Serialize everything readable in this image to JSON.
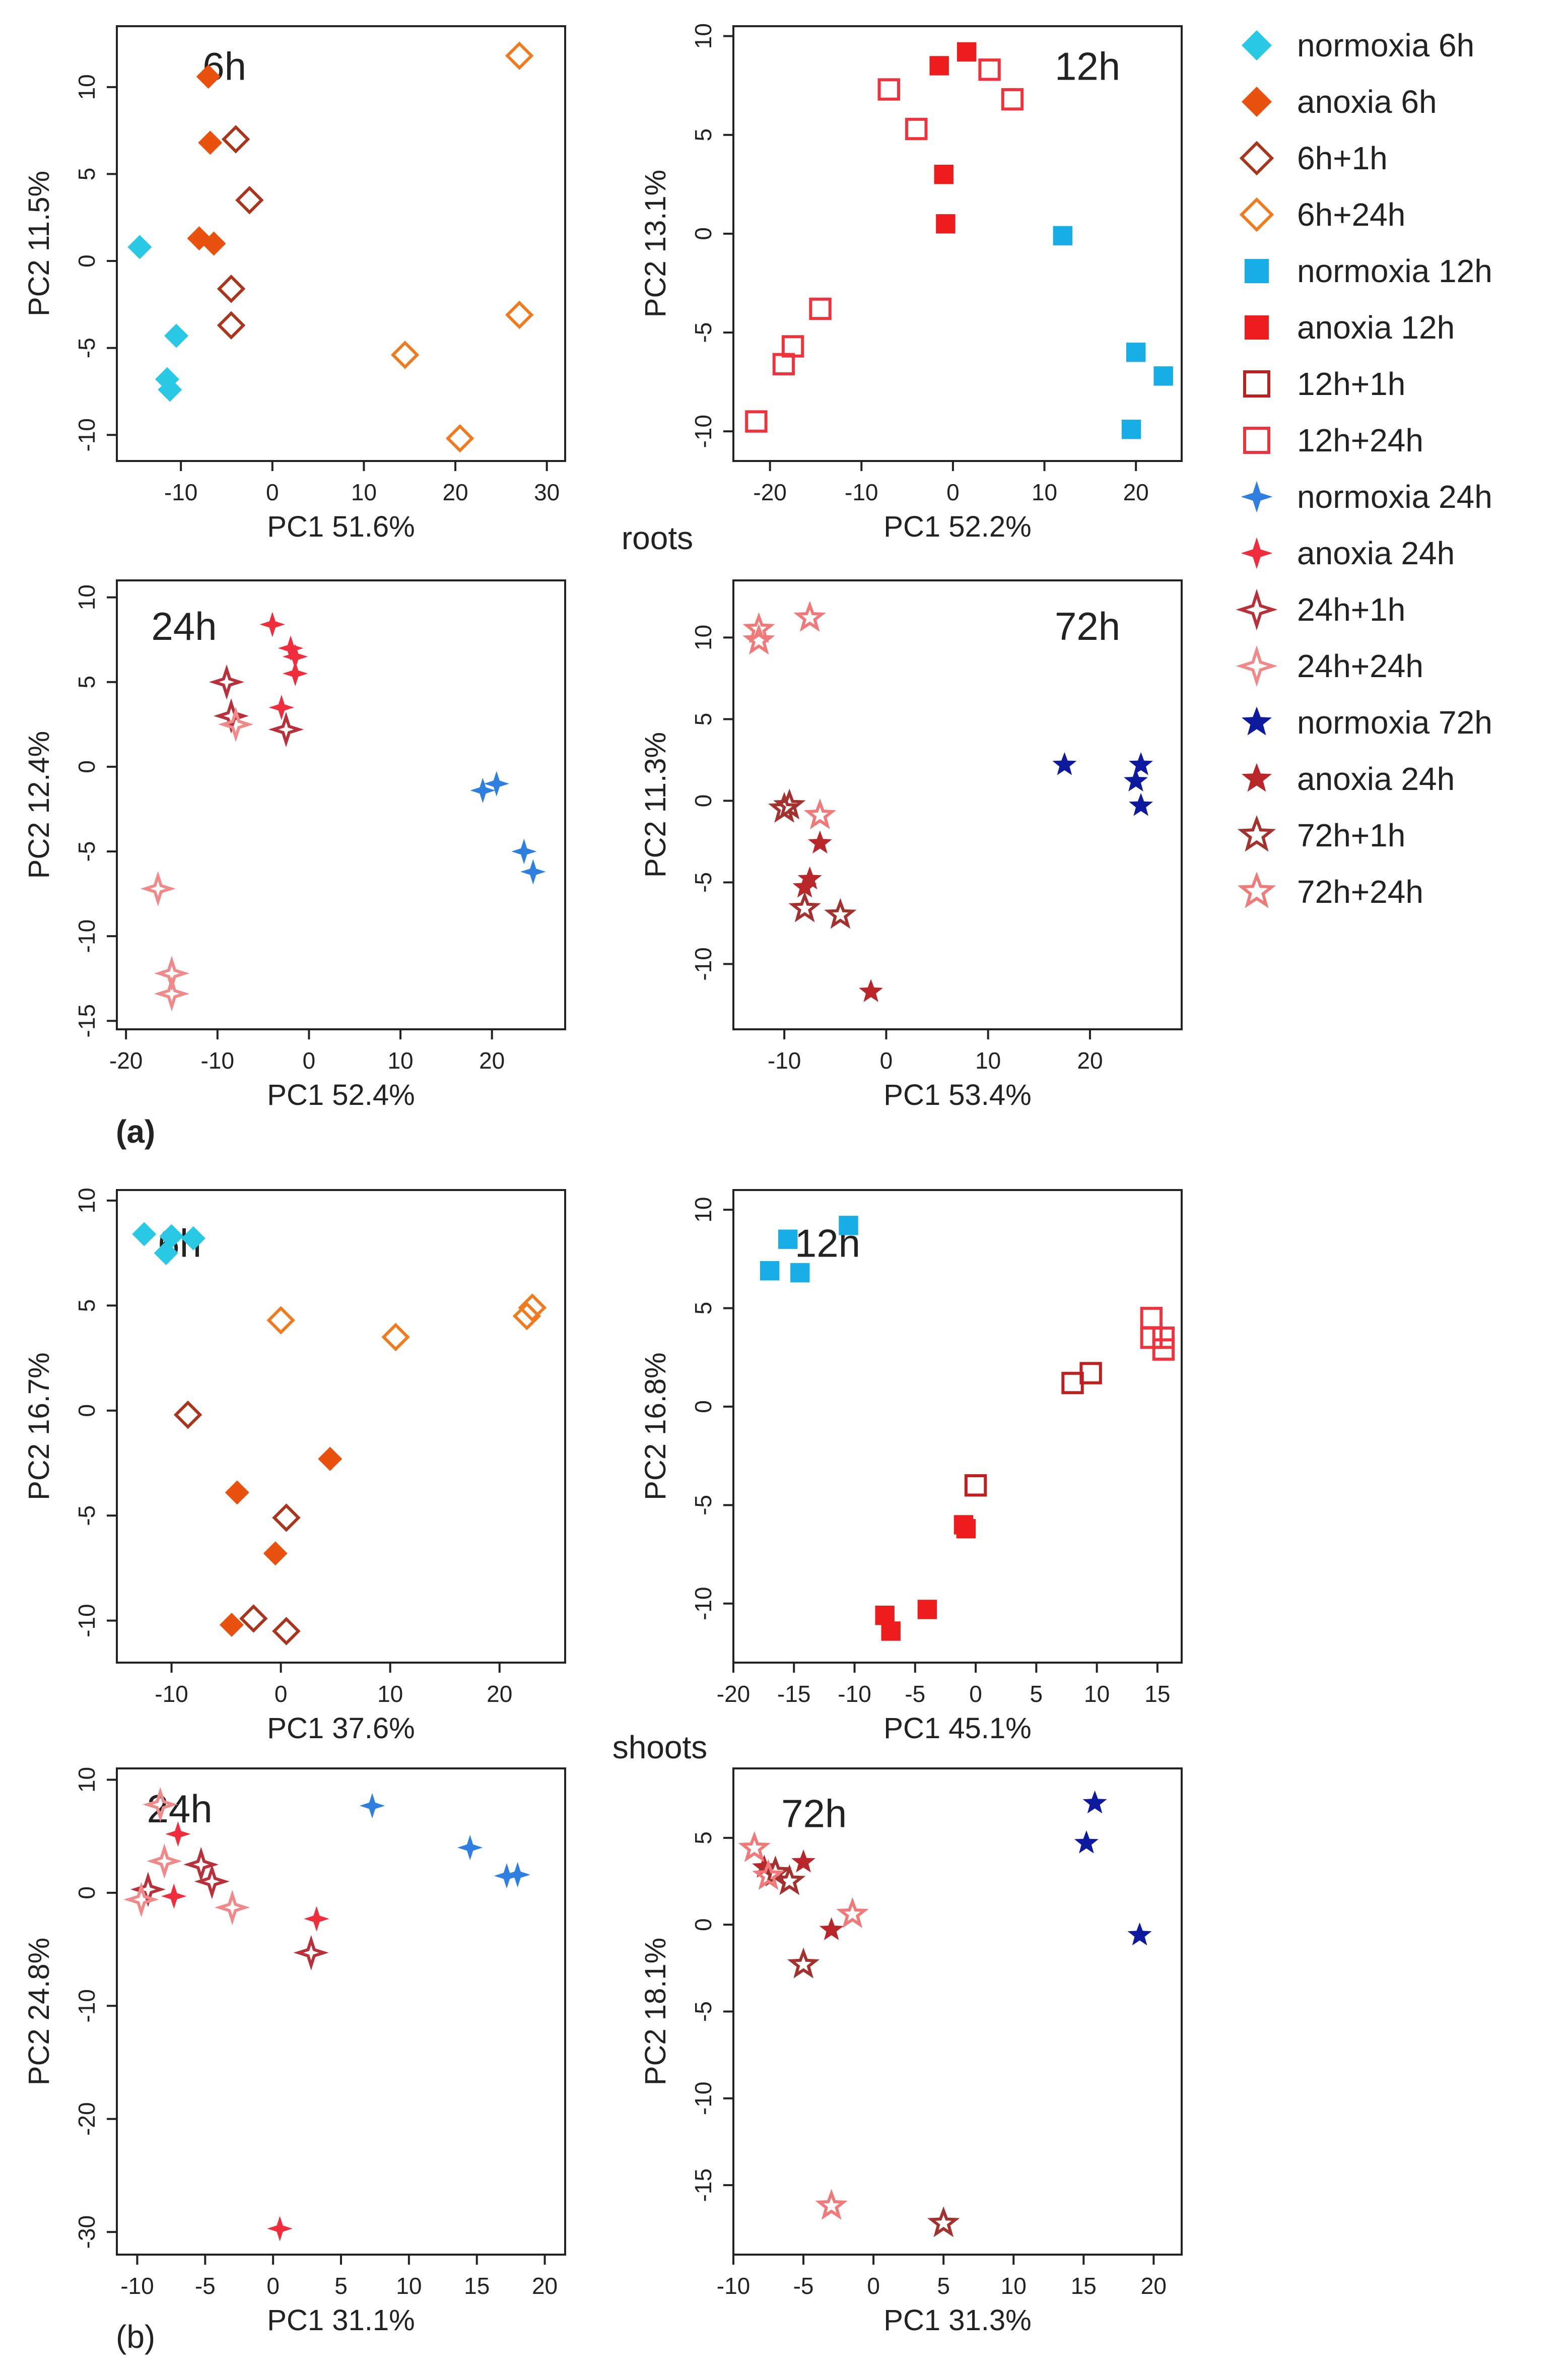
{
  "figure": {
    "roots_label": "roots",
    "shoots_label": "shoots",
    "panel_a": "(a)",
    "panel_b": "(b)"
  },
  "legend": {
    "items": [
      {
        "label": "normoxia 6h",
        "shape": "diamond",
        "color": "#29c9e6",
        "filled": true
      },
      {
        "label": "anoxia 6h",
        "shape": "diamond",
        "color": "#e8520e",
        "filled": true
      },
      {
        "label": "6h+1h",
        "shape": "diamond",
        "color": "#a8351c",
        "filled": false
      },
      {
        "label": "6h+24h",
        "shape": "diamond",
        "color": "#f07a1e",
        "filled": false
      },
      {
        "label": "normoxia 12h",
        "shape": "square",
        "color": "#17aee8",
        "filled": true
      },
      {
        "label": "anoxia 12h",
        "shape": "square",
        "color": "#ee1c1c",
        "filled": true
      },
      {
        "label": "12h+1h",
        "shape": "square",
        "color": "#bf1f1f",
        "filled": false
      },
      {
        "label": "12h+24h",
        "shape": "square",
        "color": "#f0323c",
        "filled": false
      },
      {
        "label": "normoxia 24h",
        "shape": "star4",
        "color": "#2f7fe0",
        "filled": true
      },
      {
        "label": "anoxia 24h",
        "shape": "star4",
        "color": "#ef2d3c",
        "filled": true
      },
      {
        "label": "24h+1h",
        "shape": "star4",
        "color": "#b8303a",
        "filled": false
      },
      {
        "label": "24h+24h",
        "shape": "star4",
        "color": "#f08a8a",
        "filled": false
      },
      {
        "label": "normoxia 72h",
        "shape": "star5",
        "color": "#0d1a9e",
        "filled": true
      },
      {
        "label": "anoxia 24h",
        "shape": "star5",
        "color": "#b8262a",
        "filled": true
      },
      {
        "label": "72h+1h",
        "shape": "star5",
        "color": "#a3322f",
        "filled": false
      },
      {
        "label": "72h+24h",
        "shape": "star5",
        "color": "#f07a7a",
        "filled": false
      }
    ]
  },
  "chart_data": [
    {
      "type": "scatter",
      "id": "roots-6h",
      "title": "6h",
      "xlabel": "PC1 51.6%",
      "ylabel": "PC2 11.5%",
      "xlim": [
        -17,
        32
      ],
      "ylim": [
        -11.5,
        13.5
      ],
      "xticks": [
        -10,
        0,
        10,
        20,
        30
      ],
      "yticks": [
        -10,
        -5,
        0,
        5,
        10
      ],
      "series": [
        {
          "name": "normoxia 6h",
          "shape": "diamond",
          "color": "#29c9e6",
          "filled": true,
          "x": [
            -14.5,
            -10.5,
            -11.5,
            -11.2
          ],
          "y": [
            0.8,
            -4.3,
            -6.8,
            -7.4
          ]
        },
        {
          "name": "anoxia 6h",
          "shape": "diamond",
          "color": "#e8520e",
          "filled": true,
          "x": [
            -7,
            -6.8,
            -8,
            -6.4
          ],
          "y": [
            10.6,
            6.8,
            1.3,
            1.0
          ]
        },
        {
          "name": "6h+1h",
          "shape": "diamond",
          "color": "#a8351c",
          "filled": false,
          "x": [
            -4,
            -2.5,
            -4.5,
            -4.5
          ],
          "y": [
            7.0,
            3.5,
            -1.6,
            -3.7
          ]
        },
        {
          "name": "6h+24h",
          "shape": "diamond",
          "color": "#f07a1e",
          "filled": false,
          "x": [
            27,
            27,
            14.5,
            20.5
          ],
          "y": [
            11.8,
            -3.1,
            -5.4,
            -10.2
          ]
        }
      ]
    },
    {
      "type": "scatter",
      "id": "roots-12h",
      "title": "12h",
      "xlabel": "PC1 52.2%",
      "ylabel": "PC2 13.1%",
      "xlim": [
        -24,
        25
      ],
      "ylim": [
        -11.5,
        10.5
      ],
      "xticks": [
        -20,
        -10,
        0,
        10,
        20
      ],
      "yticks": [
        -10,
        -5,
        0,
        5,
        10
      ],
      "series": [
        {
          "name": "normoxia 12h",
          "shape": "square",
          "color": "#17aee8",
          "filled": true,
          "x": [
            12,
            20,
            23,
            19.5
          ],
          "y": [
            -0.1,
            -6.0,
            -7.2,
            -9.9
          ]
        },
        {
          "name": "anoxia 12h",
          "shape": "square",
          "color": "#ee1c1c",
          "filled": true,
          "x": [
            -1.5,
            1.5,
            -1,
            -0.8
          ],
          "y": [
            8.5,
            9.2,
            3.0,
            0.5
          ]
        },
        {
          "name": "12h+1h",
          "shape": "square",
          "color": "#bf1f1f",
          "filled": false,
          "x": [],
          "y": []
        },
        {
          "name": "12h+24h",
          "shape": "square",
          "color": "#f0323c",
          "filled": false,
          "x": [
            -7,
            -4,
            4,
            6.5,
            -14.5,
            -17.5,
            -18.5,
            -21.5
          ],
          "y": [
            7.3,
            5.3,
            8.3,
            6.8,
            -3.8,
            -5.7,
            -6.6,
            -9.5
          ]
        }
      ]
    },
    {
      "type": "scatter",
      "id": "roots-24h",
      "title": "24h",
      "xlabel": "PC1 52.4%",
      "ylabel": "PC2 12.4%",
      "xlim": [
        -21,
        28
      ],
      "ylim": [
        -15.5,
        11
      ],
      "xticks": [
        -20,
        -10,
        0,
        10,
        20
      ],
      "yticks": [
        -15,
        -10,
        -5,
        0,
        5,
        10
      ],
      "series": [
        {
          "name": "normoxia 24h",
          "shape": "star4",
          "color": "#2f7fe0",
          "filled": true,
          "x": [
            19,
            20.5,
            23.5,
            24.5
          ],
          "y": [
            -1.4,
            -1.0,
            -5.0,
            -6.2
          ]
        },
        {
          "name": "anoxia 24h",
          "shape": "star4",
          "color": "#ef2d3c",
          "filled": true,
          "x": [
            -4,
            -2,
            -1.5,
            -3,
            -1.5
          ],
          "y": [
            8.4,
            7.0,
            5.5,
            3.5,
            6.5
          ]
        },
        {
          "name": "24h+1h",
          "shape": "star4",
          "color": "#b8303a",
          "filled": false,
          "x": [
            -9,
            -8.5,
            -2.5
          ],
          "y": [
            5.0,
            3.0,
            2.2
          ]
        },
        {
          "name": "24h+24h",
          "shape": "star4",
          "color": "#f08a8a",
          "filled": false,
          "x": [
            -8,
            -16.5,
            -15,
            -15
          ],
          "y": [
            2.5,
            -7.2,
            -12.2,
            -13.4
          ]
        }
      ]
    },
    {
      "type": "scatter",
      "id": "roots-72h",
      "title": "72h",
      "xlabel": "PC1 53.4%",
      "ylabel": "PC2 11.3%",
      "xlim": [
        -15,
        29
      ],
      "ylim": [
        -14,
        13.5
      ],
      "xticks": [
        -10,
        0,
        10,
        20
      ],
      "yticks": [
        -10,
        -5,
        0,
        5,
        10
      ],
      "series": [
        {
          "name": "normoxia 72h",
          "shape": "star5",
          "color": "#0d1a9e",
          "filled": true,
          "x": [
            17.5,
            25,
            24.5,
            25
          ],
          "y": [
            2.2,
            2.2,
            1.2,
            -0.3
          ]
        },
        {
          "name": "anoxia 24h",
          "shape": "star5",
          "color": "#b8262a",
          "filled": true,
          "x": [
            -6.5,
            -7.5,
            -8,
            -1.5
          ],
          "y": [
            -2.6,
            -4.8,
            -5.3,
            -11.7
          ]
        },
        {
          "name": "72h+1h",
          "shape": "star5",
          "color": "#a3322f",
          "filled": false,
          "x": [
            -10,
            -9.5,
            -8,
            -4.5
          ],
          "y": [
            -0.5,
            -0.3,
            -6.6,
            -7.0
          ]
        },
        {
          "name": "72h+24h",
          "shape": "star5",
          "color": "#f07a7a",
          "filled": false,
          "x": [
            -12.5,
            -12.5,
            -7.5,
            -6.5
          ],
          "y": [
            10.5,
            9.8,
            11.2,
            -0.9
          ]
        }
      ]
    },
    {
      "type": "scatter",
      "id": "shoots-6h",
      "title": "6h",
      "xlabel": "PC1 37.6%",
      "ylabel": "PC2 16.7%",
      "xlim": [
        -15,
        26
      ],
      "ylim": [
        -12,
        10.5
      ],
      "xticks": [
        -10,
        0,
        10,
        20
      ],
      "yticks": [
        -10,
        -5,
        0,
        5,
        10
      ],
      "series": [
        {
          "name": "normoxia 6h",
          "shape": "diamond",
          "color": "#29c9e6",
          "filled": true,
          "x": [
            -12.5,
            -10.5,
            -10,
            -8
          ],
          "y": [
            8.4,
            7.5,
            8.3,
            8.2
          ]
        },
        {
          "name": "anoxia 6h",
          "shape": "diamond",
          "color": "#e8520e",
          "filled": true,
          "x": [
            4.5,
            -4,
            -0.5,
            -4.5
          ],
          "y": [
            -2.3,
            -3.9,
            -6.8,
            -10.2
          ]
        },
        {
          "name": "6h+1h",
          "shape": "diamond",
          "color": "#a8351c",
          "filled": false,
          "x": [
            -8.5,
            0.5,
            -2.5,
            0.5
          ],
          "y": [
            -0.2,
            -5.1,
            -9.9,
            -10.5
          ]
        },
        {
          "name": "6h+24h",
          "shape": "diamond",
          "color": "#f07a1e",
          "filled": false,
          "x": [
            0,
            10.5,
            22.5,
            23
          ],
          "y": [
            4.3,
            3.5,
            4.5,
            4.9
          ]
        }
      ]
    },
    {
      "type": "scatter",
      "id": "shoots-12h",
      "title": "12h",
      "xlabel": "PC1 45.1%",
      "ylabel": "PC2 16.8%",
      "xlim": [
        -20,
        17
      ],
      "ylim": [
        -13,
        11
      ],
      "xticks": [
        -20,
        -15,
        -10,
        -5,
        0,
        5,
        10,
        15
      ],
      "yticks": [
        -10,
        -5,
        0,
        5,
        10
      ],
      "series": [
        {
          "name": "normoxia 12h",
          "shape": "square",
          "color": "#17aee8",
          "filled": true,
          "x": [
            -17,
            -15.5,
            -14.5,
            -10.5
          ],
          "y": [
            6.9,
            8.5,
            6.8,
            9.2
          ]
        },
        {
          "name": "anoxia 12h",
          "shape": "square",
          "color": "#ee1c1c",
          "filled": true,
          "x": [
            -1,
            -0.8,
            -7.5,
            -7,
            -4
          ],
          "y": [
            -6.0,
            -6.2,
            -10.6,
            -11.4,
            -10.3
          ]
        },
        {
          "name": "12h+1h",
          "shape": "square",
          "color": "#bf1f1f",
          "filled": false,
          "x": [
            0,
            8,
            9.5
          ],
          "y": [
            -4.0,
            1.2,
            1.7
          ]
        },
        {
          "name": "12h+24h",
          "shape": "square",
          "color": "#f0323c",
          "filled": false,
          "x": [
            14.5,
            14.5,
            15.5,
            15.5
          ],
          "y": [
            4.5,
            3.5,
            3.5,
            2.9
          ]
        }
      ]
    },
    {
      "type": "scatter",
      "id": "shoots-24h",
      "title": "24h",
      "xlabel": "PC1 31.1%",
      "ylabel": "PC2 24.8%",
      "xlim": [
        -11.5,
        21.5
      ],
      "ylim": [
        -32,
        11
      ],
      "xticks": [
        -10,
        -5,
        0,
        5,
        10,
        15,
        20
      ],
      "yticks": [
        -30,
        -20,
        -10,
        0,
        10
      ],
      "series": [
        {
          "name": "normoxia 24h",
          "shape": "star4",
          "color": "#2f7fe0",
          "filled": true,
          "x": [
            7.3,
            14.5,
            17.2,
            18
          ],
          "y": [
            7.7,
            4.0,
            1.5,
            1.6
          ]
        },
        {
          "name": "anoxia 24h",
          "shape": "star4",
          "color": "#ef2d3c",
          "filled": true,
          "x": [
            -7,
            -7.3,
            3.2,
            0.5
          ],
          "y": [
            5.2,
            -0.3,
            -2.3,
            -29.7
          ]
        },
        {
          "name": "24h+1h",
          "shape": "star4",
          "color": "#b8303a",
          "filled": false,
          "x": [
            -9.2,
            -5.3,
            -4.5,
            2.8
          ],
          "y": [
            0.3,
            2.5,
            1.0,
            -5.3
          ]
        },
        {
          "name": "24h+24h",
          "shape": "star4",
          "color": "#f08a8a",
          "filled": false,
          "x": [
            -8.3,
            -8,
            -9.7,
            -3
          ],
          "y": [
            7.8,
            2.8,
            -0.6,
            -1.3
          ]
        }
      ]
    },
    {
      "type": "scatter",
      "id": "shoots-72h",
      "title": "72h",
      "xlabel": "PC1 31.3%",
      "ylabel": "PC2 18.1%",
      "xlim": [
        -10,
        22
      ],
      "ylim": [
        -19,
        9
      ],
      "xticks": [
        -10,
        -5,
        0,
        5,
        10,
        15,
        20
      ],
      "yticks": [
        -15,
        -10,
        -5,
        0,
        5
      ],
      "series": [
        {
          "name": "normoxia 72h",
          "shape": "star5",
          "color": "#0d1a9e",
          "filled": true,
          "x": [
            15.8,
            15.2,
            19
          ],
          "y": [
            7.0,
            4.7,
            -0.6
          ]
        },
        {
          "name": "anoxia 24h",
          "shape": "star5",
          "color": "#b8262a",
          "filled": true,
          "x": [
            -7.8,
            -5,
            -3
          ],
          "y": [
            3.3,
            3.6,
            -0.3
          ]
        },
        {
          "name": "72h+1h",
          "shape": "star5",
          "color": "#a3322f",
          "filled": false,
          "x": [
            -7,
            -6,
            -5,
            5
          ],
          "y": [
            3.0,
            2.5,
            -2.3,
            -17.2
          ]
        },
        {
          "name": "72h+24h",
          "shape": "star5",
          "color": "#f07a7a",
          "filled": false,
          "x": [
            -8.5,
            -7.5,
            -1.5,
            -3
          ],
          "y": [
            4.4,
            2.8,
            0.6,
            -16.2
          ]
        }
      ]
    }
  ]
}
